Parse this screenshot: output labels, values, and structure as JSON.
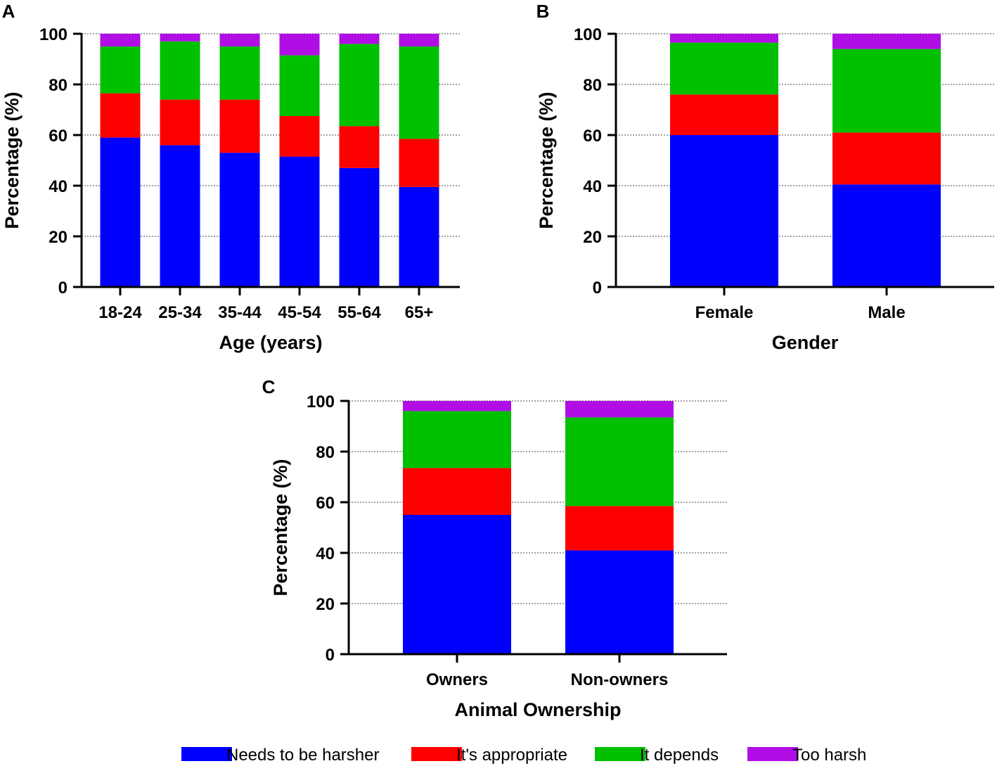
{
  "colors": {
    "Needs to be harsher": "#0000ff",
    "It's appropriate": "#ff0000",
    "It depends": "#00c000",
    "Too harsh": "#b10ee6"
  },
  "legend": [
    "Needs to be harsher",
    "It's appropriate",
    "It depends",
    "Too harsh"
  ],
  "chart_data": [
    {
      "panel": "A",
      "type": "bar",
      "stacked": true,
      "categories": [
        "18-24",
        "25-34",
        "35-44",
        "45-54",
        "55-64",
        "65+"
      ],
      "series": [
        {
          "name": "Needs to be harsher",
          "values": [
            59,
            56,
            53,
            51.5,
            47,
            39.5
          ]
        },
        {
          "name": "It's appropriate",
          "values": [
            17.5,
            18,
            21,
            16,
            16.5,
            19
          ]
        },
        {
          "name": "It depends",
          "values": [
            18.5,
            23,
            21,
            24,
            32.5,
            36.5
          ]
        },
        {
          "name": "Too harsh",
          "values": [
            5,
            3,
            5,
            8.5,
            4,
            5
          ]
        }
      ],
      "xlabel": "Age (years)",
      "ylabel": "Percentage (%)",
      "ylim": [
        0,
        100
      ],
      "yticks": [
        0,
        20,
        40,
        60,
        80,
        100
      ],
      "grid": true
    },
    {
      "panel": "B",
      "type": "bar",
      "stacked": true,
      "categories": [
        "Female",
        "Male"
      ],
      "series": [
        {
          "name": "Needs to be harsher",
          "values": [
            60,
            40.5
          ]
        },
        {
          "name": "It's appropriate",
          "values": [
            16,
            20.5
          ]
        },
        {
          "name": "It depends",
          "values": [
            20.5,
            33
          ]
        },
        {
          "name": "Too harsh",
          "values": [
            3.5,
            6
          ]
        }
      ],
      "xlabel": "Gender",
      "ylabel": "Percentage (%)",
      "ylim": [
        0,
        100
      ],
      "yticks": [
        0,
        20,
        40,
        60,
        80,
        100
      ],
      "grid": true
    },
    {
      "panel": "C",
      "type": "bar",
      "stacked": true,
      "categories": [
        "Owners",
        "Non-owners"
      ],
      "series": [
        {
          "name": "Needs to be harsher",
          "values": [
            55,
            41
          ]
        },
        {
          "name": "It's appropriate",
          "values": [
            18.5,
            17.5
          ]
        },
        {
          "name": "It depends",
          "values": [
            22.5,
            35
          ]
        },
        {
          "name": "Too harsh",
          "values": [
            4,
            6.5
          ]
        }
      ],
      "xlabel": "Animal Ownership",
      "ylabel": "Percentage (%)",
      "ylim": [
        0,
        100
      ],
      "yticks": [
        0,
        20,
        40,
        60,
        80,
        100
      ],
      "grid": true
    }
  ]
}
